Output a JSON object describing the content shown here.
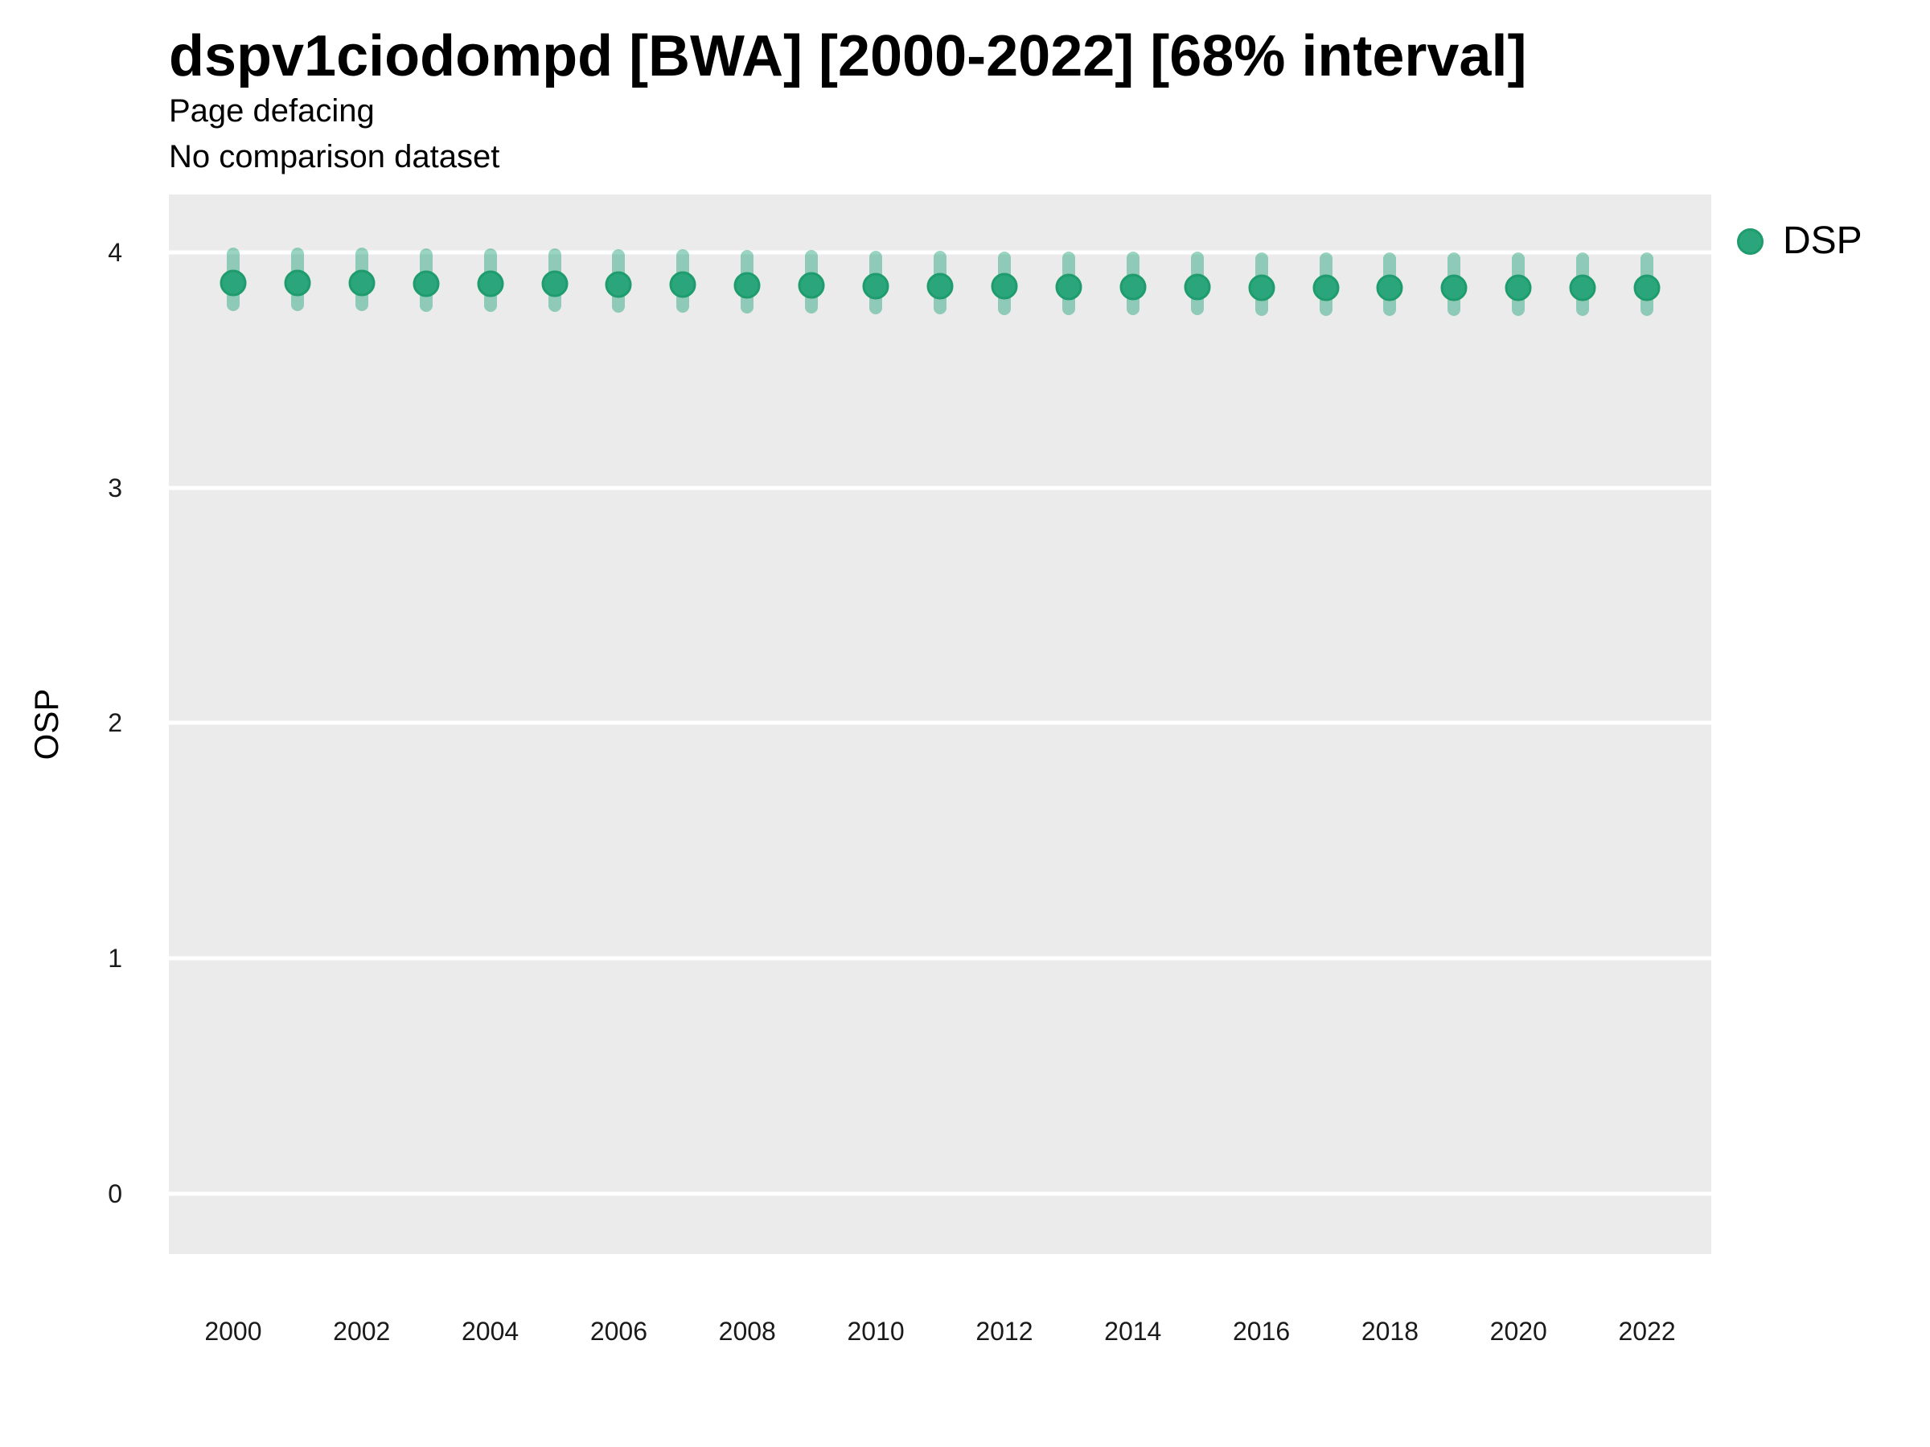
{
  "header": {
    "title": "dspv1ciodompd [BWA] [2000-2022] [68% interval]",
    "subtitle1": "Page defacing",
    "subtitle2": "No comparison dataset"
  },
  "legend": {
    "label": "DSP",
    "dot_color": "#2BA67C"
  },
  "colors": {
    "panel_background": "#EBEBEB",
    "gridline": "#FFFFFF",
    "point_fill": "#2BA67C",
    "point_stroke": "#1E9C6E",
    "interval_bar": "rgba(30,160,120,0.45)",
    "text": "#000000"
  },
  "chart_data": {
    "type": "scatter",
    "title": "dspv1ciodompd [BWA] [2000-2022] [68% interval]",
    "subtitle1": "Page defacing",
    "subtitle2": "No comparison dataset",
    "xlabel": "",
    "ylabel": "OSP",
    "legend_position": "right",
    "grid": "horizontal-major-only",
    "xlim": [
      1999,
      2023
    ],
    "ylim": [
      -0.257,
      4.246
    ],
    "y_ticks": [
      4,
      3,
      2,
      1,
      0
    ],
    "x_ticks": [
      2000,
      2002,
      2004,
      2006,
      2008,
      2010,
      2012,
      2014,
      2016,
      2018,
      2020,
      2022
    ],
    "series": [
      {
        "name": "DSP",
        "interval_label": "68% interval",
        "x": [
          2000,
          2001,
          2002,
          2003,
          2004,
          2005,
          2006,
          2007,
          2008,
          2009,
          2010,
          2011,
          2012,
          2013,
          2014,
          2015,
          2016,
          2017,
          2018,
          2019,
          2020,
          2021,
          2022
        ],
        "values": [
          3.87,
          3.87,
          3.869,
          3.868,
          3.867,
          3.866,
          3.865,
          3.863,
          3.861,
          3.859,
          3.857,
          3.856,
          3.855,
          3.854,
          3.853,
          3.852,
          3.851,
          3.851,
          3.85,
          3.85,
          3.849,
          3.849,
          3.849
        ],
        "lower": [
          3.75,
          3.75,
          3.749,
          3.748,
          3.747,
          3.746,
          3.745,
          3.743,
          3.741,
          3.739,
          3.737,
          3.736,
          3.735,
          3.734,
          3.733,
          3.732,
          3.731,
          3.731,
          3.73,
          3.73,
          3.729,
          3.729,
          3.729
        ],
        "upper": [
          4.02,
          4.02,
          4.019,
          4.018,
          4.017,
          4.016,
          4.015,
          4.013,
          4.011,
          4.009,
          4.007,
          4.006,
          4.005,
          4.004,
          4.003,
          4.002,
          4.001,
          4.001,
          4.0,
          4.0,
          3.999,
          3.999,
          3.999
        ]
      }
    ]
  }
}
